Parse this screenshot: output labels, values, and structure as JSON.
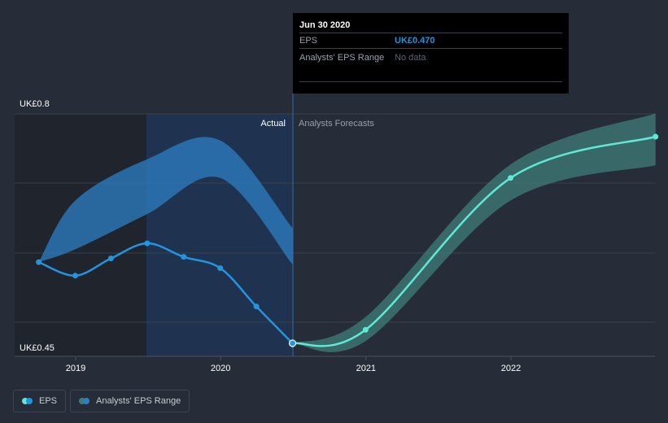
{
  "chart_data": {
    "type": "line",
    "title": "",
    "y_ticks": [
      "UK£0.8",
      "UK£0.45"
    ],
    "ylim": [
      0.45,
      0.8
    ],
    "x_ticks": [
      "2019",
      "2020",
      "2021",
      "2022"
    ],
    "section_labels": {
      "actual": "Actual",
      "forecast": "Analysts Forecasts"
    },
    "series": [
      {
        "name": "EPS",
        "color": "#2394df",
        "points": [
          [
            "2018-09-30",
            0.578
          ],
          [
            "2018-12-31",
            0.56
          ],
          [
            "2019-03-31",
            0.583
          ],
          [
            "2019-06-30",
            0.603
          ],
          [
            "2019-09-30",
            0.585
          ],
          [
            "2019-12-31",
            0.57
          ],
          [
            "2020-03-31",
            0.519
          ],
          [
            "2020-06-30",
            0.47
          ]
        ]
      },
      {
        "name": "EPS Forecast",
        "color": "#60e8d4",
        "points": [
          [
            "2020-06-30",
            0.47
          ],
          [
            "2020-12-31",
            0.488
          ],
          [
            "2021-12-31",
            0.69
          ],
          [
            "2022-12-31",
            0.745
          ]
        ]
      }
    ],
    "ranges": [
      {
        "name": "Analysts' EPS Range (past)",
        "color": "#2d7fc4",
        "upper": [
          [
            "2018-09-30",
            0.578
          ],
          [
            "2018-12-31",
            0.66
          ],
          [
            "2019-06-30",
            0.715
          ],
          [
            "2019-12-31",
            0.74
          ],
          [
            "2020-06-30",
            0.623
          ]
        ],
        "lower": [
          [
            "2018-09-30",
            0.578
          ],
          [
            "2018-12-31",
            0.595
          ],
          [
            "2019-06-30",
            0.642
          ],
          [
            "2019-12-31",
            0.69
          ],
          [
            "2020-06-30",
            0.575
          ]
        ]
      },
      {
        "name": "Analysts' EPS Range",
        "color": "#3f7d78",
        "upper": [
          [
            "2020-06-30",
            0.47
          ],
          [
            "2020-12-31",
            0.505
          ],
          [
            "2021-12-31",
            0.708
          ],
          [
            "2022-12-31",
            0.776
          ]
        ],
        "lower": [
          [
            "2020-06-30",
            0.47
          ],
          [
            "2020-12-31",
            0.473
          ],
          [
            "2021-12-31",
            0.66
          ],
          [
            "2022-12-31",
            0.707
          ]
        ]
      }
    ],
    "highlight_point": {
      "date": "2020-06-30",
      "value": 0.47
    },
    "tooltip": {
      "date": "Jun 30 2020",
      "rows": [
        {
          "label": "EPS",
          "value": "UK£0.470"
        },
        {
          "label": "Analysts' EPS Range",
          "value": "No data"
        }
      ]
    },
    "legend": [
      "EPS",
      "Analysts' EPS Range"
    ],
    "legend_colors": {
      "eps": [
        "#2394df",
        "#60e8d4"
      ],
      "range": [
        "#2d7fc4",
        "#3f7d78"
      ]
    }
  }
}
